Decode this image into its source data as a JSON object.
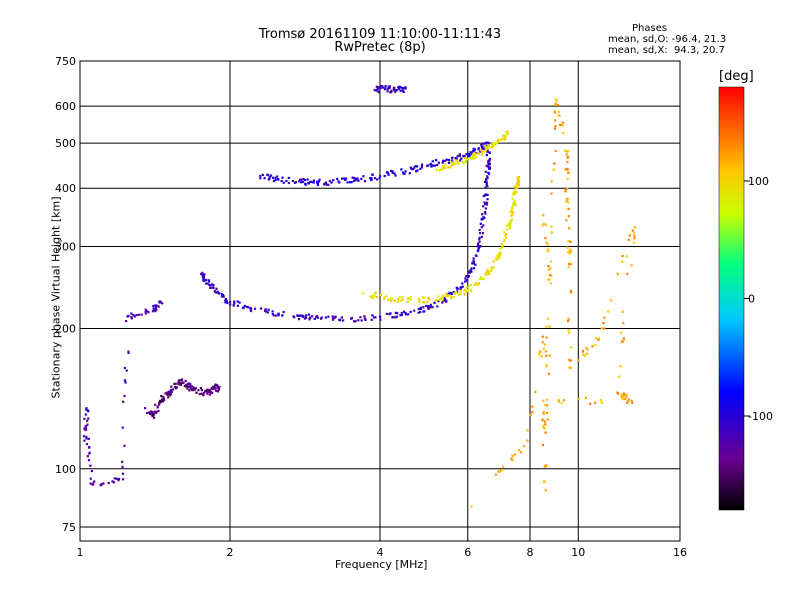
{
  "title_line1": "Tromsø 20161109 11:10:00-11:11:43",
  "title_line2": "RwPretec (8p)",
  "stats": {
    "heading": "Phases",
    "o_mode": "mean, sd,O: -96.4, 21.3",
    "x_mode": "mean, sd,X:  94.3, 20.7"
  },
  "chart_data": {
    "type": "scatter",
    "xlabel": "Frequency [MHz]",
    "ylabel": "Stationary phase Virtual Height [km]",
    "xscale": "log",
    "yscale": "log",
    "xlim": [
      1,
      16
    ],
    "ylim": [
      70,
      750
    ],
    "x_ticks": [
      1,
      2,
      4,
      6,
      8,
      10,
      16
    ],
    "y_ticks": [
      75,
      100,
      200,
      300,
      400,
      500,
      600,
      750
    ],
    "grid": true,
    "colorbar": {
      "label": "[deg]",
      "min": -180,
      "max": 180,
      "ticks": [
        100,
        0,
        -100
      ],
      "colors": [
        "#000000",
        "#7a0090",
        "#0000ff",
        "#00c8ff",
        "#00ff80",
        "#c8ff00",
        "#ffc800",
        "#ff0000"
      ]
    },
    "traces": [
      {
        "description": "F2 O-mode low band",
        "phase": -110,
        "points": [
          [
            1.75,
            262
          ],
          [
            1.8,
            250
          ],
          [
            1.9,
            238
          ],
          [
            2.0,
            228
          ],
          [
            2.2,
            220
          ],
          [
            2.5,
            215
          ],
          [
            2.8,
            212
          ],
          [
            3.0,
            211
          ],
          [
            3.5,
            210
          ],
          [
            4.0,
            212
          ],
          [
            4.5,
            216
          ],
          [
            5.0,
            222
          ],
          [
            5.4,
            230
          ],
          [
            5.8,
            245
          ],
          [
            6.1,
            265
          ],
          [
            6.3,
            295
          ],
          [
            6.4,
            330
          ],
          [
            6.5,
            370
          ],
          [
            6.55,
            410
          ],
          [
            6.6,
            450
          ],
          [
            6.6,
            490
          ]
        ]
      },
      {
        "description": "F2 X-mode low band",
        "phase": 95,
        "points": [
          [
            3.7,
            238
          ],
          [
            4.2,
            232
          ],
          [
            4.8,
            230
          ],
          [
            5.3,
            232
          ],
          [
            5.8,
            238
          ],
          [
            6.2,
            248
          ],
          [
            6.6,
            265
          ],
          [
            6.9,
            285
          ],
          [
            7.1,
            310
          ],
          [
            7.3,
            340
          ],
          [
            7.4,
            370
          ],
          [
            7.5,
            400
          ],
          [
            7.55,
            420
          ]
        ]
      },
      {
        "description": "upper O-mode trace",
        "phase": -100,
        "points": [
          [
            2.3,
            425
          ],
          [
            2.5,
            418
          ],
          [
            2.8,
            413
          ],
          [
            3.0,
            412
          ],
          [
            3.3,
            414
          ],
          [
            3.6,
            418
          ],
          [
            4.0,
            425
          ],
          [
            4.5,
            435
          ],
          [
            5.0,
            448
          ],
          [
            5.5,
            460
          ],
          [
            6.0,
            472
          ],
          [
            6.3,
            485
          ],
          [
            6.6,
            500
          ]
        ]
      },
      {
        "description": "upper X-mode trace",
        "phase": 90,
        "points": [
          [
            5.2,
            438
          ],
          [
            5.6,
            450
          ],
          [
            6.0,
            462
          ],
          [
            6.3,
            475
          ],
          [
            6.6,
            490
          ],
          [
            6.9,
            505
          ],
          [
            7.2,
            525
          ]
        ]
      },
      {
        "description": "top fragment",
        "phase": -110,
        "points": [
          [
            3.9,
            650
          ],
          [
            4.1,
            655
          ],
          [
            4.3,
            650
          ],
          [
            4.5,
            655
          ]
        ]
      },
      {
        "description": "E/Es cluster",
        "phase": -140,
        "points": [
          [
            1.35,
            135
          ],
          [
            1.4,
            130
          ],
          [
            1.45,
            140
          ],
          [
            1.5,
            145
          ],
          [
            1.55,
            150
          ],
          [
            1.6,
            155
          ],
          [
            1.65,
            150
          ],
          [
            1.7,
            148
          ],
          [
            1.8,
            145
          ],
          [
            1.85,
            150
          ],
          [
            1.9,
            148
          ]
        ]
      },
      {
        "description": "low isolated points",
        "phase": -120,
        "points": [
          [
            1.02,
            115
          ],
          [
            1.03,
            135
          ],
          [
            1.05,
            93
          ],
          [
            1.22,
            95
          ],
          [
            1.25,
            213
          ],
          [
            1.4,
            218
          ],
          [
            1.45,
            228
          ]
        ]
      },
      {
        "description": "scattered high-frequency points",
        "phase": 120,
        "points": [
          [
            8.5,
            350
          ],
          [
            8.8,
            250
          ],
          [
            9.0,
            620
          ],
          [
            9.5,
            480
          ],
          [
            9.5,
            380
          ],
          [
            9.6,
            290
          ],
          [
            9.6,
            165
          ],
          [
            11.0,
            190
          ],
          [
            13.0,
            330
          ],
          [
            12.0,
            145
          ],
          [
            12.8,
            140
          ],
          [
            8.5,
            140
          ],
          [
            8.6,
            90
          ],
          [
            8.7,
            210
          ],
          [
            7.9,
            115
          ],
          [
            6.1,
            83
          ]
        ]
      }
    ]
  }
}
